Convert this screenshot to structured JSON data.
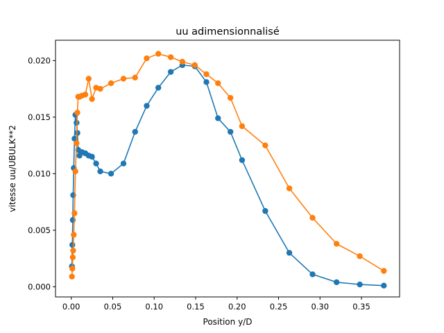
{
  "chart_data": {
    "type": "line",
    "title": "uu adimensionnalisé",
    "xlabel": "Position y/D",
    "ylabel": "vitesse uu/UBULK**2",
    "xlim": [
      -0.019,
      0.396
    ],
    "ylim": [
      -0.0009,
      0.0218
    ],
    "xticks": [
      "0.00",
      "0.05",
      "0.10",
      "0.15",
      "0.20",
      "0.25",
      "0.30",
      "0.35"
    ],
    "xtick_values": [
      0.0,
      0.05,
      0.1,
      0.15,
      0.2,
      0.25,
      0.3,
      0.35
    ],
    "yticks": [
      "0.000",
      "0.005",
      "0.010",
      "0.015",
      "0.020"
    ],
    "ytick_values": [
      0.0,
      0.005,
      0.01,
      0.015,
      0.02
    ],
    "grid": false,
    "marker": "circle",
    "series": [
      {
        "color": "#1f77b4",
        "x": [
          0.0008,
          0.0013,
          0.0018,
          0.0023,
          0.003,
          0.0039,
          0.005,
          0.0064,
          0.0074,
          0.0084,
          0.01,
          0.013,
          0.017,
          0.021,
          0.025,
          0.03,
          0.035,
          0.048,
          0.063,
          0.077,
          0.091,
          0.105,
          0.12,
          0.134,
          0.149,
          0.163,
          0.177,
          0.192,
          0.206,
          0.234,
          0.263,
          0.291,
          0.32,
          0.348,
          0.377
        ],
        "y": [
          0.0018,
          0.0037,
          0.0059,
          0.0081,
          0.0105,
          0.0131,
          0.0152,
          0.0145,
          0.0136,
          0.0121,
          0.0116,
          0.0119,
          0.0118,
          0.0116,
          0.0115,
          0.0109,
          0.0102,
          0.01,
          0.0109,
          0.0137,
          0.016,
          0.0176,
          0.019,
          0.0196,
          0.0195,
          0.0181,
          0.0149,
          0.0137,
          0.0112,
          0.0067,
          0.003,
          0.0011,
          0.0004,
          0.0002,
          0.0001
        ]
      },
      {
        "color": "#ff7f0e",
        "x": [
          0.0008,
          0.0013,
          0.0018,
          0.0023,
          0.003,
          0.0039,
          0.005,
          0.0064,
          0.0074,
          0.0084,
          0.01,
          0.013,
          0.017,
          0.021,
          0.025,
          0.03,
          0.035,
          0.048,
          0.063,
          0.077,
          0.091,
          0.105,
          0.12,
          0.134,
          0.149,
          0.163,
          0.177,
          0.192,
          0.206,
          0.234,
          0.263,
          0.291,
          0.32,
          0.348,
          0.377
        ],
        "y": [
          0.0009,
          0.0016,
          0.0026,
          0.0032,
          0.0046,
          0.0065,
          0.0102,
          0.0127,
          0.0154,
          0.0168,
          0.0168,
          0.0169,
          0.017,
          0.0184,
          0.0166,
          0.0176,
          0.0175,
          0.018,
          0.0184,
          0.0185,
          0.0202,
          0.0206,
          0.0203,
          0.0199,
          0.0196,
          0.0188,
          0.018,
          0.0167,
          0.0142,
          0.0125,
          0.0087,
          0.0061,
          0.0038,
          0.0027,
          0.0014
        ]
      }
    ]
  }
}
